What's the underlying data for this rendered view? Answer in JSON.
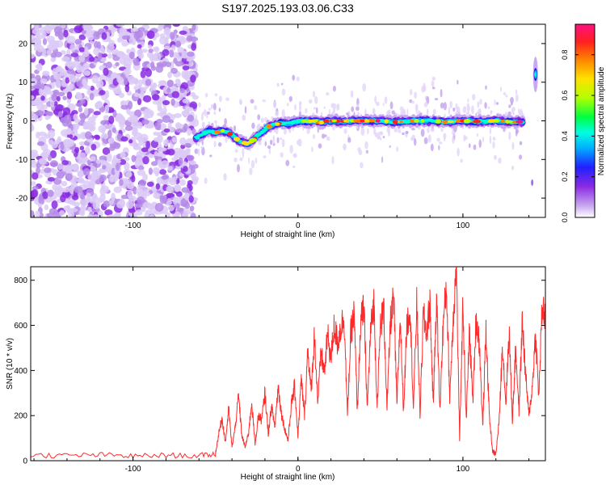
{
  "title": "S197.2025.193.03.06.C33",
  "chart_data": [
    {
      "type": "heatmap",
      "xlabel": "Height of straight line (km)",
      "ylabel": "Frequency (Hz)",
      "xlim": [
        -162,
        150
      ],
      "ylim": [
        -25,
        25
      ],
      "xticks": [
        -100,
        0,
        100
      ],
      "yticks": [
        -20,
        -10,
        0,
        10,
        20
      ],
      "xtick_labels": [
        "-100",
        "0",
        "100"
      ],
      "ytick_labels": [
        "-20",
        "-10",
        "0",
        "10",
        "20"
      ],
      "noise_region_x": [
        -162,
        -62
      ],
      "colorbar": {
        "label": "Normalized spectral amplitude",
        "range": [
          0,
          0.95
        ],
        "ticks": [
          0,
          0.2,
          0.4,
          0.6,
          0.8
        ],
        "tick_labels": [
          "0.0",
          "0.2",
          "0.4",
          "0.6",
          "0.8"
        ],
        "colormap": [
          "#d6c4f7",
          "#8a2be2",
          "#1a1aff",
          "#00e5ff",
          "#00ff40",
          "#b4ff00",
          "#ffe000",
          "#ff8000",
          "#ff2020",
          "#ff1080"
        ]
      },
      "ridge": {
        "x": [
          -62,
          -58,
          -54,
          -50,
          -46,
          -42,
          -38,
          -34,
          -30,
          -26,
          -22,
          -18,
          -14,
          -10,
          -6,
          -2,
          2,
          6,
          10,
          14,
          18,
          22,
          26,
          30,
          40,
          50,
          60,
          70,
          80,
          90,
          100,
          110,
          120,
          130,
          137
        ],
        "freq": [
          -4.5,
          -3.5,
          -2.5,
          -3,
          -2.5,
          -3,
          -4.5,
          -5.5,
          -6,
          -4.5,
          -3,
          -1.5,
          -1,
          -0.5,
          -0.8,
          -0.3,
          0,
          -0.2,
          0,
          -0.5,
          0,
          0,
          -0.2,
          0,
          0,
          0,
          -0.3,
          0,
          0,
          -0.3,
          0,
          -0.2,
          0,
          -0.3,
          -0.2
        ]
      },
      "late_burst": {
        "x": 144,
        "freq": 12
      }
    },
    {
      "type": "line",
      "xlabel": "Height of straight line (km)",
      "ylabel": "SNR (10 * v/v)",
      "xlim": [
        -162,
        150
      ],
      "ylim": [
        0,
        860
      ],
      "xticks": [
        -100,
        0,
        100
      ],
      "yticks": [
        0,
        200,
        400,
        600,
        800
      ],
      "xtick_labels": [
        "-100",
        "0",
        "100"
      ],
      "ytick_labels": [
        "0",
        "200",
        "400",
        "600",
        "800"
      ],
      "color": "#ff2a2a",
      "series": [
        {
          "x": [
            -162,
            -140,
            -120,
            -100,
            -80,
            -60,
            -50,
            -48,
            -46,
            -44,
            -42,
            -40,
            -38,
            -36,
            -34,
            -32,
            -30,
            -28,
            -26,
            -24,
            -22,
            -20,
            -18,
            -16,
            -14,
            -12,
            -10,
            -8,
            -6,
            -4,
            -2,
            0,
            2,
            4,
            6,
            8,
            10,
            12,
            14,
            16,
            18,
            20,
            22,
            24,
            26,
            28,
            30,
            32,
            34,
            36,
            38,
            40,
            42,
            44,
            46,
            48,
            50,
            52,
            54,
            56,
            58,
            60,
            62,
            64,
            66,
            68,
            70,
            72,
            74,
            76,
            78,
            80,
            82,
            84,
            86,
            88,
            90,
            92,
            94,
            96,
            98,
            100,
            102,
            104,
            106,
            108,
            110,
            112,
            114,
            116,
            118,
            120,
            122,
            124,
            126,
            128,
            130,
            132,
            134,
            136,
            138,
            140,
            142,
            144,
            146,
            148,
            150
          ],
          "y": [
            25,
            22,
            26,
            20,
            24,
            22,
            30,
            120,
            190,
            80,
            230,
            60,
            150,
            290,
            110,
            60,
            120,
            260,
            70,
            200,
            180,
            300,
            120,
            240,
            150,
            330,
            210,
            140,
            90,
            250,
            330,
            110,
            360,
            200,
            500,
            300,
            560,
            260,
            480,
            390,
            560,
            450,
            600,
            520,
            590,
            640,
            200,
            560,
            650,
            220,
            610,
            680,
            230,
            570,
            700,
            240,
            600,
            680,
            230,
            610,
            720,
            250,
            640,
            220,
            600,
            680,
            230,
            700,
            200,
            650,
            560,
            700,
            250,
            730,
            220,
            600,
            780,
            280,
            620,
            860,
            90,
            700,
            180,
            580,
            260,
            640,
            520,
            150,
            580,
            200,
            40,
            30,
            180,
            520,
            250,
            580,
            180,
            500,
            220,
            620,
            380,
            200,
            320,
            560,
            280,
            680,
            640
          ]
        }
      ]
    }
  ]
}
